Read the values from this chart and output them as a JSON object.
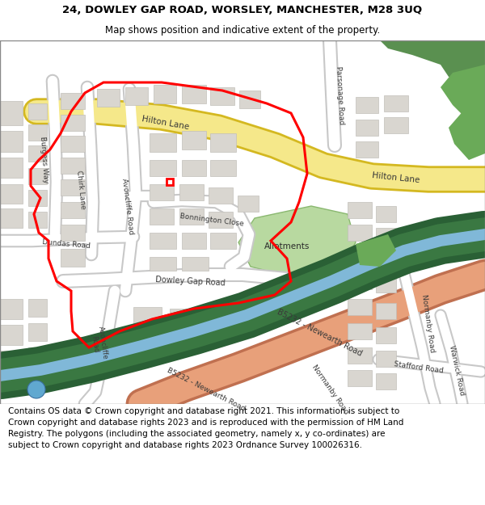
{
  "title_line1": "24, DOWLEY GAP ROAD, WORSLEY, MANCHESTER, M28 3UQ",
  "title_line2": "Map shows position and indicative extent of the property.",
  "footer_text": "Contains OS data © Crown copyright and database right 2021. This information is subject to Crown copyright and database rights 2023 and is reproduced with the permission of HM Land Registry. The polygons (including the associated geometry, namely x, y co-ordinates) are subject to Crown copyright and database rights 2023 Ordnance Survey 100026316.",
  "title_fontsize": 9.5,
  "title2_fontsize": 8.5,
  "footer_fontsize": 7.5,
  "bg_color": "#ffffff",
  "map_bg": "#f2f0ed",
  "building_color": "#d9d6d0",
  "building_edge": "#c2bfba",
  "road_white": "#ffffff",
  "road_edge": "#c8c8c8",
  "road_yellow": "#f5e88a",
  "road_yellow_edge": "#d4b820",
  "road_salmon": "#e8a07a",
  "road_salmon_edge": "#c07050",
  "green_dark": "#5a9050",
  "green_mid": "#6aaa58",
  "green_light": "#b8d9a0",
  "canal_blue": "#80b8d8",
  "canal_green_dark": "#2a6035",
  "canal_green_mid": "#3a7842",
  "red_boundary": "#ff0000",
  "blue_pond": "#60a8d0"
}
